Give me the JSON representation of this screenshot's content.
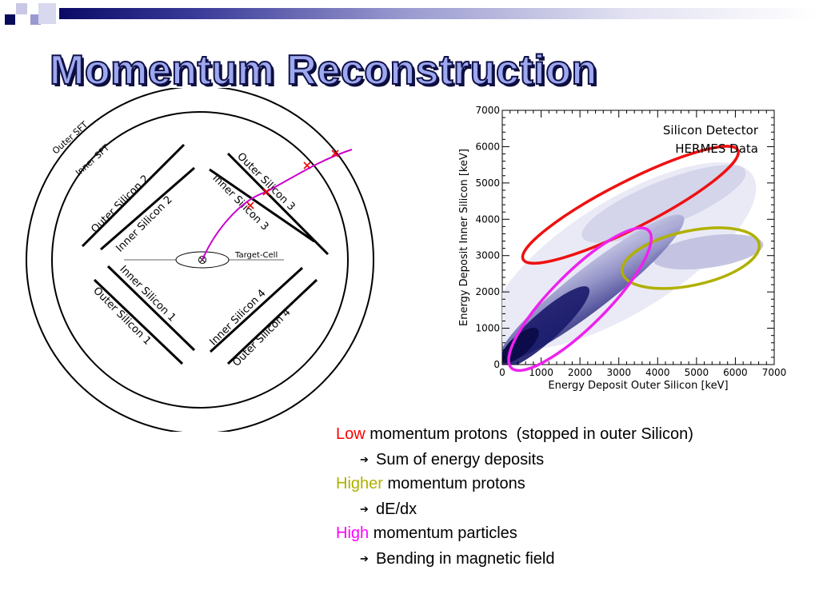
{
  "slide": {
    "title": "Momentum Reconstruction"
  },
  "detector": {
    "outer_sft": "Outer SFT",
    "inner_sft": "Inner SFT",
    "outer_silicon_1": "Outer Silicon 1",
    "outer_silicon_2": "Outer Silicon 2",
    "outer_silicon_3": "Outer Silicon 3",
    "outer_silicon_4": "Outer Silicon 4",
    "inner_silicon_1": "Inner Silicon 1",
    "inner_silicon_2": "Inner Silicon 2",
    "inner_silicon_3": "Inner Silicon 3",
    "inner_silicon_4": "Inner Silicon 4",
    "target_cell": "Target-Cell",
    "track_color": "#cc00cc",
    "hit_color": "#ee0000"
  },
  "plot": {
    "annotation_line1": "Silicon Detector",
    "annotation_line2": "HERMES Data",
    "xlabel": "Energy Deposit Outer Silicon [keV]",
    "ylabel": "Energy Deposit Inner Silicon [keV]",
    "xlim": [
      0,
      7000
    ],
    "ylim": [
      0,
      7000
    ],
    "x_ticks": [
      "0",
      "1000",
      "2000",
      "3000",
      "4000",
      "5000",
      "6000",
      "7000"
    ],
    "y_ticks": [
      "0",
      "1000",
      "2000",
      "3000",
      "4000",
      "5000",
      "6000",
      "7000"
    ],
    "regions": [
      {
        "name": "low",
        "color": "#ee1111",
        "cx": 3300,
        "cy": 4400,
        "rx": 3100,
        "ry": 600,
        "angle_deg": -27
      },
      {
        "name": "higher",
        "color": "#b0b000",
        "cx": 4850,
        "cy": 2930,
        "rx": 1800,
        "ry": 700,
        "angle_deg": -12
      },
      {
        "name": "high",
        "color": "#ee22ee",
        "cx": 2000,
        "cy": 1800,
        "rx": 2500,
        "ry": 700,
        "angle_deg": -45
      }
    ]
  },
  "bullets": {
    "low_word": "Low",
    "low_rest": " momentum protons  (stopped in outer Silicon)",
    "low_sub": "Sum of energy deposits",
    "higher_word": "Higher",
    "higher_rest": " momentum protons",
    "higher_sub": "dE/dx",
    "high_word": "High",
    "high_rest": " momentum particles",
    "high_sub": "Bending in magnetic field",
    "arrow_glyph": "➔",
    "colors": {
      "low": "#ff0000",
      "higher": "#b0b000",
      "high": "#ff00ff"
    }
  },
  "header": {
    "square_colors": [
      "#0b0b5c",
      "#9a9ad0",
      "#c8c8e6",
      "#d8d8ee"
    ],
    "gradient_start": "#0a0a66"
  }
}
